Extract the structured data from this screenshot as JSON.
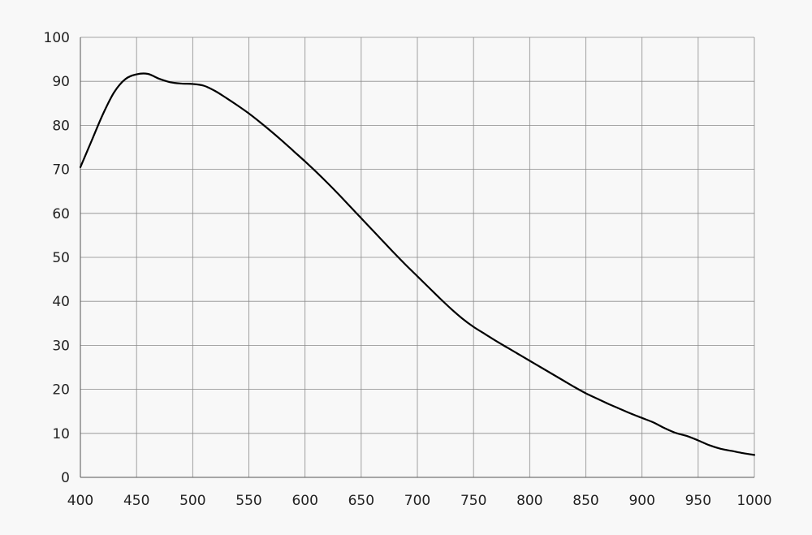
{
  "chart_data": {
    "type": "line",
    "title": "",
    "xlabel": "",
    "ylabel": "",
    "xlim": [
      400,
      1000
    ],
    "ylim": [
      0,
      100
    ],
    "x_ticks": [
      400,
      450,
      500,
      550,
      600,
      650,
      700,
      750,
      800,
      850,
      900,
      950,
      1000
    ],
    "y_ticks": [
      0,
      10,
      20,
      30,
      40,
      50,
      60,
      70,
      80,
      90,
      100
    ],
    "x_tick_labels": [
      "400",
      "450",
      "500",
      "550",
      "600",
      "650",
      "700",
      "750",
      "800",
      "850",
      "900",
      "950",
      "1000"
    ],
    "y_tick_labels": [
      "0",
      "10",
      "20",
      "30",
      "40",
      "50",
      "60",
      "70",
      "80",
      "90",
      "100"
    ],
    "grid": true,
    "series": [
      {
        "color": "#000000",
        "x": [
          400,
          410,
          420,
          430,
          440,
          450,
          460,
          470,
          480,
          490,
          500,
          510,
          520,
          530,
          540,
          550,
          560,
          570,
          580,
          590,
          600,
          610,
          620,
          630,
          640,
          650,
          660,
          670,
          680,
          690,
          700,
          710,
          720,
          730,
          740,
          750,
          760,
          770,
          780,
          790,
          800,
          810,
          820,
          830,
          840,
          850,
          860,
          870,
          880,
          890,
          900,
          910,
          920,
          930,
          940,
          950,
          960,
          970,
          980,
          990,
          1000
        ],
        "y": [
          70.5,
          76.5,
          82.5,
          87.5,
          90.5,
          91.6,
          91.7,
          90.6,
          89.8,
          89.5,
          89.4,
          89.0,
          87.8,
          86.2,
          84.5,
          82.7,
          80.7,
          78.6,
          76.4,
          74.1,
          71.8,
          69.4,
          66.9,
          64.3,
          61.6,
          58.9,
          56.2,
          53.5,
          50.8,
          48.2,
          45.7,
          43.2,
          40.7,
          38.3,
          36.1,
          34.2,
          32.6,
          31.0,
          29.5,
          28.0,
          26.5,
          25.0,
          23.5,
          22.0,
          20.5,
          19.1,
          17.9,
          16.7,
          15.6,
          14.5,
          13.5,
          12.5,
          11.2,
          10.1,
          9.4,
          8.4,
          7.3,
          6.5,
          6.0,
          5.5,
          5.1
        ]
      }
    ]
  }
}
